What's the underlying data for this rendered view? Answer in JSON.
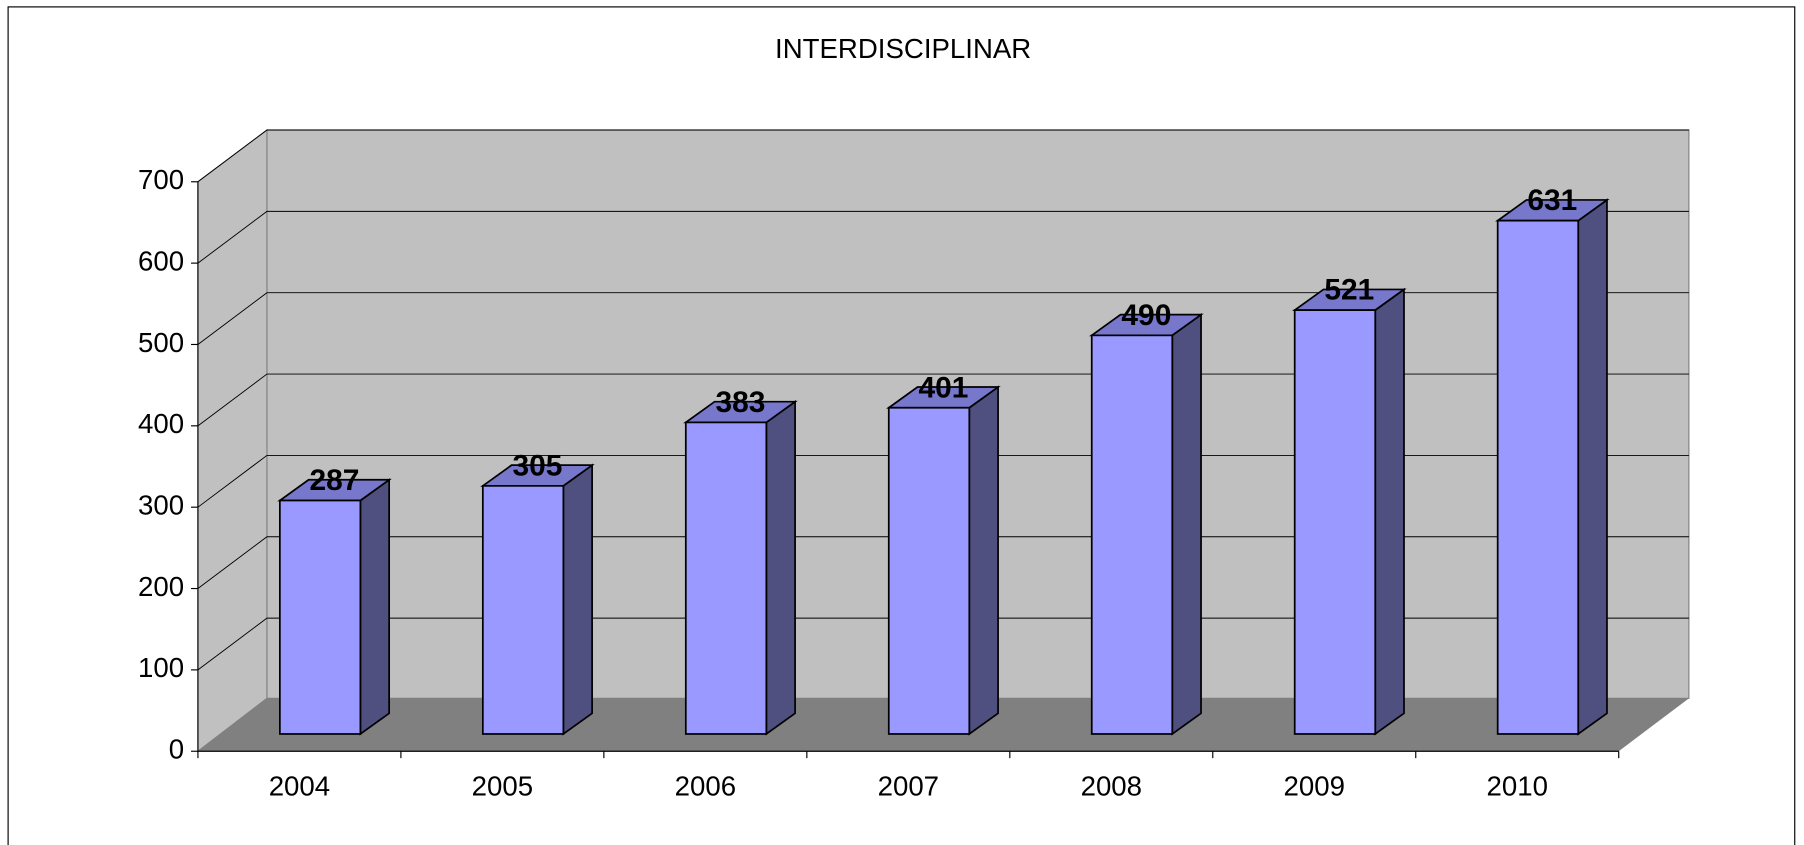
{
  "chart_data": {
    "type": "bar3d",
    "title": "INTERDISCIPLINAR",
    "categories": [
      "2004",
      "2005",
      "2006",
      "2007",
      "2008",
      "2009",
      "2010"
    ],
    "values": [
      287,
      305,
      383,
      401,
      490,
      521,
      631
    ],
    "color": "#9999ff",
    "side_color": "#4f4f80",
    "top_color": "#7777cc",
    "ylim": [
      0,
      700
    ],
    "yticks": [
      0,
      100,
      200,
      300,
      400,
      500,
      600,
      700
    ],
    "grid": true
  }
}
